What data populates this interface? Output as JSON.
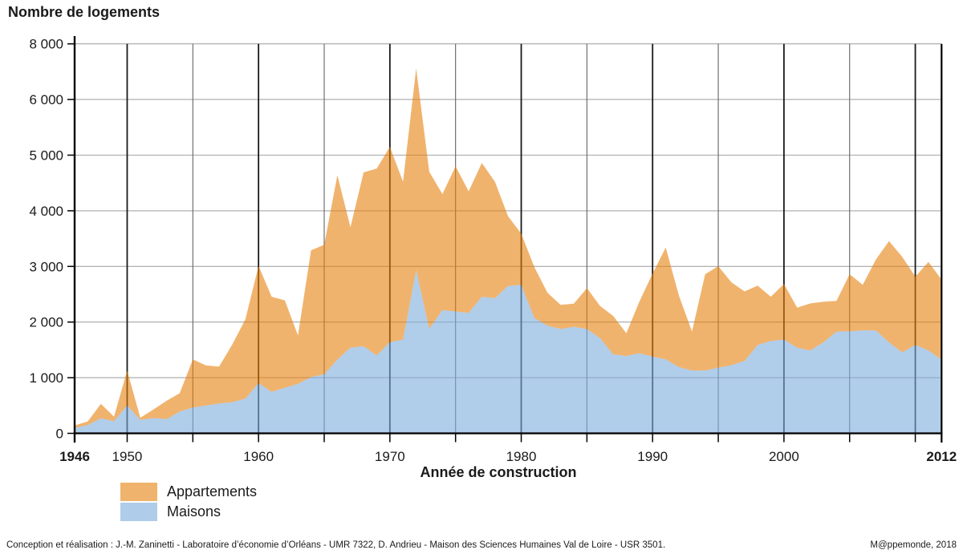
{
  "title": "Nombre de logements",
  "x_axis": {
    "title": "Année de construction",
    "start_year": 1946,
    "end_year": 2012,
    "gridline_years": [
      1950,
      1955,
      1960,
      1965,
      1970,
      1975,
      1980,
      1985,
      1990,
      1995,
      2000,
      2005,
      2010
    ],
    "tick_years": [
      1946,
      1950,
      1955,
      1960,
      1965,
      1970,
      1975,
      1980,
      1985,
      1990,
      1995,
      2000,
      2005,
      2010,
      2012
    ],
    "labels": [
      {
        "year": 1946,
        "text": "1946",
        "bold": true
      },
      {
        "year": 1950,
        "text": "1950",
        "bold": false
      },
      {
        "year": 1960,
        "text": "1960",
        "bold": false
      },
      {
        "year": 1970,
        "text": "1970",
        "bold": false
      },
      {
        "year": 1980,
        "text": "1980",
        "bold": false
      },
      {
        "year": 1990,
        "text": "1990",
        "bold": false
      },
      {
        "year": 2000,
        "text": "2000",
        "bold": false
      },
      {
        "year": 2012,
        "text": "2012",
        "bold": true
      }
    ]
  },
  "y_axis": {
    "tick_values": [
      0,
      1000,
      2000,
      3000,
      4000,
      5000,
      6000,
      8000
    ],
    "tick_labels": [
      "0",
      "1 000",
      "2 000",
      "3 000",
      "4 000",
      "5 000",
      "6 000",
      "8 000"
    ],
    "axis_note": "gridlines equally spaced; the top step jumps from 6 000 to 8 000 (no 7 000 line)"
  },
  "legend": [
    {
      "label": "Appartements",
      "color": "#F0B36D"
    },
    {
      "label": "Maisons",
      "color": "#AFCCEA"
    }
  ],
  "footer": {
    "left": "Conception et réalisation : J.-M. Zaninetti - Laboratoire d’économie d’Orléans - UMR 7322,  D. Andrieu - Maison des Sciences Humaines Val de Loire  - USR 3501.",
    "right": "M@ppemonde, 2018"
  },
  "colors": {
    "appartements_area_base": "#E6800C",
    "maisons_area_base": "#7BACDC",
    "area_opacity": 0.6,
    "grid_horizontal": "#A6A6A6",
    "grid_vertical_minor": "#636363",
    "grid_vertical_decade": "#1A1A1A",
    "axis": "#000000",
    "text": "#1A1A1A"
  },
  "chart_data": {
    "type": "area",
    "stacked": true,
    "title": "Nombre de logements",
    "xlabel": "Année de construction",
    "ylabel": "Nombre de logements",
    "x_start": 1946,
    "x_end": 2012,
    "x_step": 1,
    "legend_position": "bottom-left",
    "grid": true,
    "series": [
      {
        "name": "Maisons",
        "values": [
          95,
          150,
          270,
          220,
          500,
          240,
          275,
          255,
          390,
          465,
          500,
          535,
          560,
          625,
          900,
          745,
          820,
          890,
          1010,
          1060,
          1325,
          1540,
          1565,
          1400,
          1640,
          1685,
          2935,
          1880,
          2215,
          2190,
          2165,
          2455,
          2430,
          2650,
          2670,
          2070,
          1935,
          1875,
          1915,
          1875,
          1710,
          1420,
          1390,
          1440,
          1380,
          1330,
          1190,
          1130,
          1130,
          1180,
          1225,
          1300,
          1590,
          1660,
          1685,
          1540,
          1490,
          1635,
          1830,
          1835,
          1850,
          1850,
          1635,
          1455,
          1590,
          1490,
          1325
        ]
      },
      {
        "name": "Appartements",
        "values": [
          45,
          65,
          260,
          80,
          630,
          40,
          155,
          330,
          330,
          865,
          720,
          665,
          1035,
          1425,
          2110,
          1710,
          1570,
          870,
          2280,
          2330,
          3315,
          2165,
          3125,
          3360,
          3510,
          2835,
          4185,
          2820,
          2085,
          2610,
          2185,
          2405,
          2090,
          1250,
          920,
          915,
          590,
          435,
          415,
          735,
          580,
          690,
          410,
          930,
          1490,
          2010,
          1290,
          700,
          1730,
          1825,
          1490,
          1250,
          1065,
          795,
          1000,
          720,
          845,
          730,
          550,
          1025,
          820,
          1275,
          1820,
          1720,
          1225,
          1590,
          1440
        ]
      }
    ]
  }
}
